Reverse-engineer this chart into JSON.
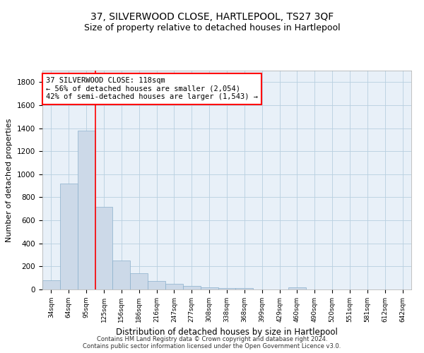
{
  "title": "37, SILVERWOOD CLOSE, HARTLEPOOL, TS27 3QF",
  "subtitle": "Size of property relative to detached houses in Hartlepool",
  "xlabel": "Distribution of detached houses by size in Hartlepool",
  "ylabel": "Number of detached properties",
  "categories": [
    "34sqm",
    "64sqm",
    "95sqm",
    "125sqm",
    "156sqm",
    "186sqm",
    "216sqm",
    "247sqm",
    "277sqm",
    "308sqm",
    "338sqm",
    "368sqm",
    "399sqm",
    "429sqm",
    "460sqm",
    "490sqm",
    "520sqm",
    "551sqm",
    "581sqm",
    "612sqm",
    "642sqm"
  ],
  "values": [
    80,
    920,
    1380,
    720,
    250,
    140,
    75,
    50,
    30,
    20,
    15,
    10,
    0,
    0,
    20,
    0,
    0,
    0,
    0,
    0,
    0
  ],
  "bar_color": "#ccd9e8",
  "bar_edgecolor": "#8ab0cc",
  "redline_x": 2.5,
  "annotation_text": "37 SILVERWOOD CLOSE: 118sqm\n← 56% of detached houses are smaller (2,054)\n42% of semi-detached houses are larger (1,543) →",
  "annotation_bbox": {
    "facecolor": "white",
    "edgecolor": "red",
    "linewidth": 1.5
  },
  "ylim": [
    0,
    1900
  ],
  "yticks": [
    0,
    200,
    400,
    600,
    800,
    1000,
    1200,
    1400,
    1600,
    1800
  ],
  "grid_color": "#b8cfe0",
  "bg_color": "#e8f0f8",
  "footer": "Contains HM Land Registry data © Crown copyright and database right 2024.\nContains public sector information licensed under the Open Government Licence v3.0.",
  "title_fontsize": 10,
  "subtitle_fontsize": 9,
  "xlabel_fontsize": 8.5,
  "ylabel_fontsize": 8,
  "annotation_fontsize": 7.5,
  "footer_fontsize": 6
}
